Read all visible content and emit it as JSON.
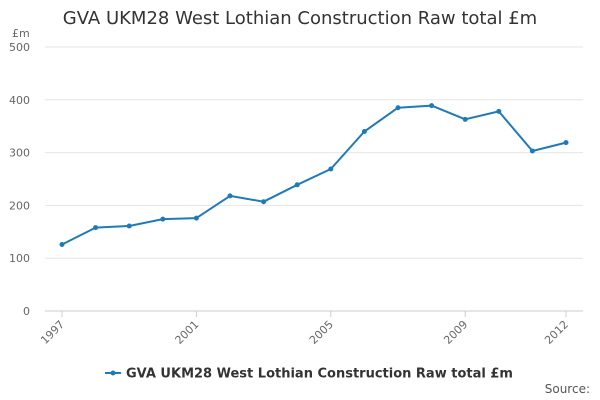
{
  "chart_data": {
    "type": "line",
    "title": "GVA UKM28 West Lothian Construction Raw total £m",
    "ylabel": "£m",
    "xlabel": "",
    "ylim": [
      0,
      500
    ],
    "yticks": [
      0,
      100,
      200,
      300,
      400,
      500
    ],
    "xtick_labels": [
      "1997",
      "2001",
      "2005",
      "2009",
      "2012"
    ],
    "x": [
      1997,
      1998,
      1999,
      2000,
      2001,
      2002,
      2003,
      2004,
      2005,
      2006,
      2007,
      2008,
      2009,
      2010,
      2011,
      2012
    ],
    "series": [
      {
        "name": "GVA UKM28 West Lothian Construction Raw total £m",
        "color": "#1f7ab8",
        "values": [
          126,
          158,
          161,
          174,
          176,
          218,
          207,
          239,
          269,
          340,
          385,
          389,
          363,
          378,
          303,
          319
        ]
      }
    ],
    "grid": true,
    "legend": "bottom-center",
    "source_label": "Source:"
  }
}
